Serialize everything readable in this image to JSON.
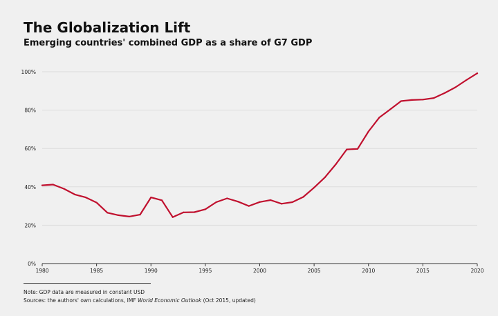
{
  "title": "The Globalization Lift",
  "subtitle": "Emerging countries' combined GDP as a share of G7 GDP",
  "footnotes": {
    "note": "Note: GDP data are measured in constant USD",
    "sources_prefix": "Sources: the authors' own calculations, IMF ",
    "sources_italic": "World Economic Outlook",
    "sources_suffix": " (Oct 2015, updated)"
  },
  "colors": {
    "background": "#f0f0f0",
    "line": "#c0102e",
    "grid": "#dcdcdc",
    "axis": "#333333"
  },
  "chart_data": {
    "type": "line",
    "title": "The Globalization Lift",
    "subtitle": "Emerging countries' combined GDP as a share of G7 GDP",
    "xlabel": "",
    "ylabel": "",
    "xlim": [
      1980,
      2020
    ],
    "ylim": [
      0,
      100
    ],
    "grid": true,
    "y_ticks": [
      0,
      20,
      40,
      60,
      80,
      100
    ],
    "y_tick_labels": [
      "0%",
      "20%",
      "40%",
      "60%",
      "80%",
      "100%"
    ],
    "x_ticks": [
      1980,
      1985,
      1990,
      1995,
      2000,
      2005,
      2010,
      2015,
      2020
    ],
    "x_tick_labels": [
      "1980",
      "1985",
      "1990",
      "1995",
      "2000",
      "2005",
      "2010",
      "2015",
      "2020"
    ],
    "series": [
      {
        "x": [
          1980,
          1981,
          1982,
          1983,
          1984,
          1985,
          1986,
          1987,
          1988,
          1989,
          1990,
          1991,
          1992,
          1993,
          1994,
          1995,
          1996,
          1997,
          1998,
          1999,
          2000,
          2001,
          2002,
          2003,
          2004,
          2005,
          2006,
          2007,
          2008,
          2009,
          2010,
          2011,
          2012,
          2013,
          2014,
          2015,
          2016,
          2017,
          2018,
          2019,
          2020
        ],
        "values": [
          40.8,
          41.2,
          39,
          36,
          34.5,
          31.8,
          26.5,
          25.2,
          24.5,
          25.5,
          34.5,
          33,
          24.2,
          26.7,
          26.8,
          28.3,
          32,
          34,
          32.3,
          30,
          32.1,
          33.1,
          31.2,
          32,
          34.7,
          39.6,
          45,
          51.8,
          59.5,
          59.8,
          68.9,
          76.2,
          80.4,
          84.7,
          85.3,
          85.5,
          86.3,
          88.9,
          91.9,
          95.7,
          99.2
        ]
      }
    ]
  }
}
